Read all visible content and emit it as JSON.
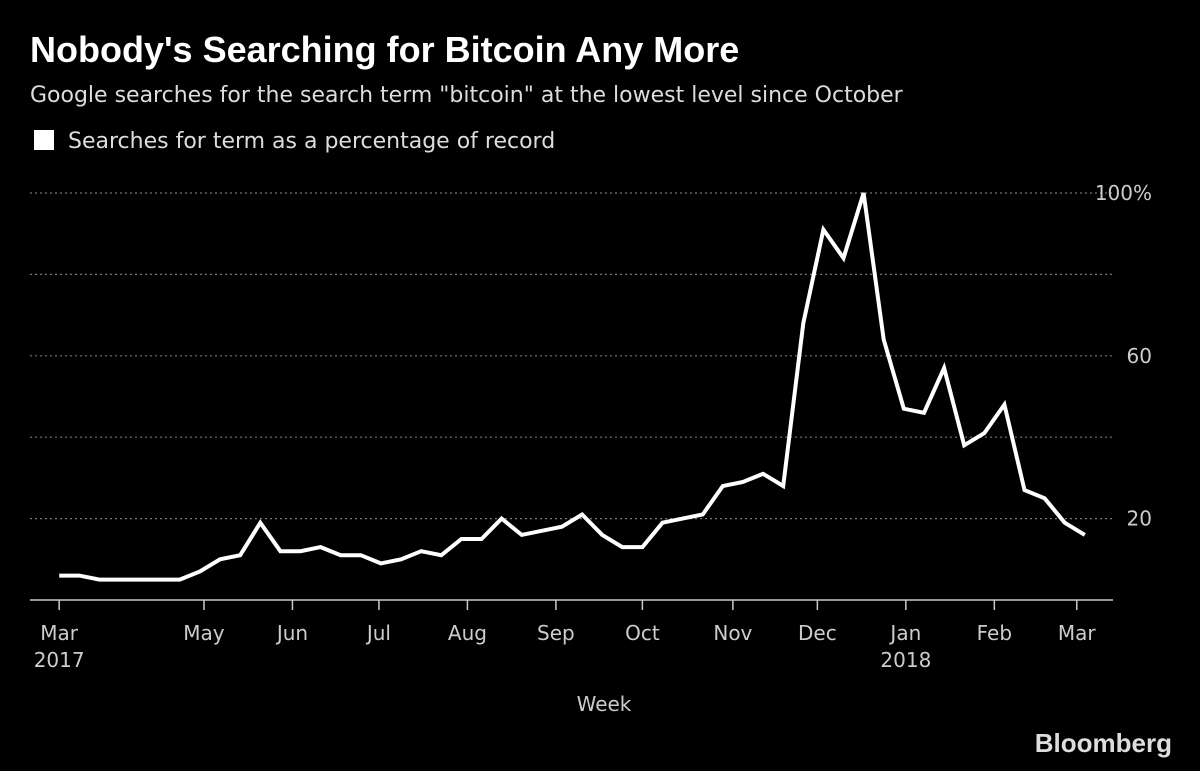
{
  "chart_data": {
    "type": "line",
    "title": "Nobody's Searching for Bitcoin Any More",
    "subtitle": "Google searches for the search term \"bitcoin\" at the lowest level since October",
    "x_label": "Week",
    "source": "Bloomberg",
    "x": [
      0,
      1,
      2,
      3,
      4,
      5,
      6,
      7,
      8,
      9,
      10,
      11,
      12,
      13,
      14,
      15,
      16,
      17,
      18,
      19,
      20,
      21,
      22,
      23,
      24,
      25,
      26,
      27,
      28,
      29,
      30,
      31,
      32,
      33,
      34,
      35,
      36,
      37,
      38,
      39,
      40,
      41,
      42,
      43,
      44,
      45,
      46,
      47,
      48,
      49,
      50,
      51
    ],
    "series": [
      {
        "name": "Searches for term as a percentage of record",
        "color": "#ffffff",
        "values": [
          6,
          6,
          5,
          5,
          5,
          5,
          5,
          7,
          10,
          11,
          19,
          12,
          12,
          13,
          11,
          11,
          9,
          10,
          12,
          11,
          15,
          15,
          20,
          16,
          17,
          18,
          21,
          16,
          13,
          13,
          19,
          20,
          21,
          28,
          29,
          31,
          28,
          68,
          91,
          84,
          100,
          64,
          47,
          46,
          57,
          38,
          41,
          48,
          27,
          25,
          19,
          16
        ]
      }
    ],
    "xlim": [
      -1.45,
      52.4
    ],
    "xticks": [
      {
        "value": 0,
        "label": "Mar\n2017"
      },
      {
        "value": 7.2,
        "label": "May"
      },
      {
        "value": 11.6,
        "label": "Jun"
      },
      {
        "value": 15.9,
        "label": "Jul"
      },
      {
        "value": 20.3,
        "label": "Aug"
      },
      {
        "value": 24.7,
        "label": "Sep"
      },
      {
        "value": 29.0,
        "label": "Oct"
      },
      {
        "value": 33.5,
        "label": "Nov"
      },
      {
        "value": 37.7,
        "label": "Dec"
      },
      {
        "value": 42.1,
        "label": "Jan\n2018"
      },
      {
        "value": 46.5,
        "label": "Feb"
      },
      {
        "value": 50.6,
        "label": "Mar"
      }
    ],
    "ylim": [
      0,
      100
    ],
    "yticks": [
      20,
      60,
      {
        "value": 100,
        "label": "100%"
      }
    ],
    "yticks_minor": [
      40,
      80
    ],
    "grid": true
  }
}
